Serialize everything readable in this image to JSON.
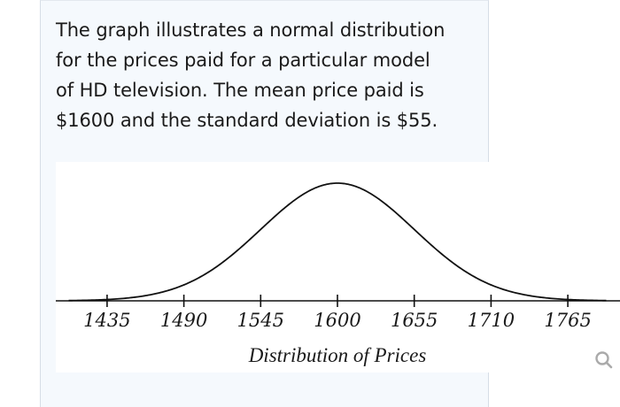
{
  "prompt": {
    "lines": [
      "The graph illustrates a normal distribution",
      "for the prices paid for a particular model",
      "of HD television. The mean price paid is",
      "$1600 and the standard deviation is $55."
    ]
  },
  "zoom_icon": "magnifier-icon",
  "colors": {
    "panel_bg": "#f5f9fd",
    "panel_border": "#d6dde6",
    "curve": "#111111",
    "icon": "#aaaaaa"
  },
  "chart_data": {
    "type": "line",
    "subtype": "normal-distribution-curve",
    "mean": 1600,
    "std_dev": 55,
    "title": "",
    "xlabel": "Distribution of Prices",
    "ylabel": "",
    "x_ticks": [
      1435,
      1490,
      1545,
      1600,
      1655,
      1710,
      1765
    ],
    "x_tick_labels": [
      "1435",
      "1490",
      "1545",
      "1600",
      "1655",
      "1710",
      "1765"
    ],
    "xlim": [
      1390,
      1810
    ],
    "grid": false,
    "legend": null
  }
}
